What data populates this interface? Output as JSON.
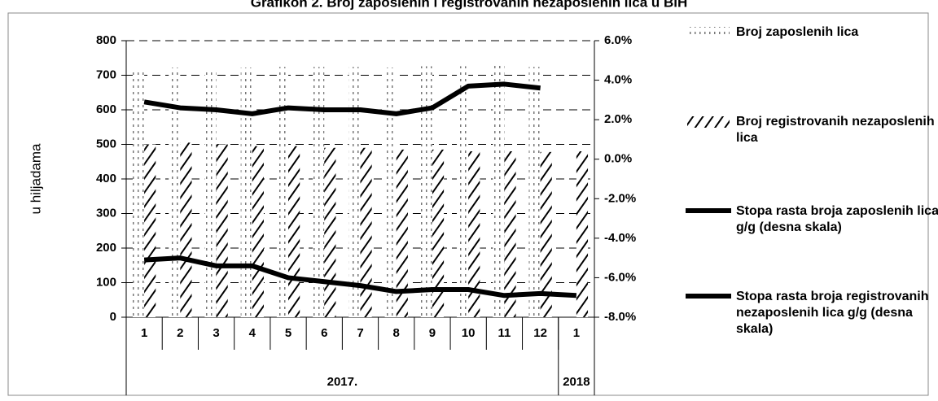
{
  "chart_data": {
    "type": "bar",
    "title": "Grafikon 2. Broj zaposlenih i registrovanih nezaposlenih lica u BiH",
    "y_label": "u hiljadama",
    "categories": [
      "1",
      "2",
      "3",
      "4",
      "5",
      "6",
      "7",
      "8",
      "9",
      "10",
      "11",
      "12",
      "1"
    ],
    "groups": [
      {
        "label": "2017.",
        "span": 12
      },
      {
        "label": "2018",
        "span": 1
      }
    ],
    "ylim": [
      0,
      800
    ],
    "yticks": [
      0,
      100,
      200,
      300,
      400,
      500,
      600,
      700,
      800
    ],
    "y2lim": [
      -8,
      6
    ],
    "y2ticks": [
      {
        "value": -8,
        "label": "-8.0%"
      },
      {
        "value": -6,
        "label": "-6.0%"
      },
      {
        "value": -4,
        "label": "-4.0%"
      },
      {
        "value": -2,
        "label": "-2.0%"
      },
      {
        "value": 0,
        "label": "0.0%"
      },
      {
        "value": 2,
        "label": "2.0%"
      },
      {
        "value": 4,
        "label": "4.0%"
      },
      {
        "value": 6,
        "label": "6.0%"
      }
    ],
    "grid": true,
    "series": [
      {
        "name": "Broj zaposlenih lica",
        "kind": "bar",
        "pattern": "dots",
        "color": "#000000",
        "values": [
          720,
          722,
          720,
          722,
          724,
          724,
          724,
          722,
          726,
          726,
          728,
          724,
          null
        ]
      },
      {
        "name": "Broj registrovanih nezaposlenih lica",
        "kind": "bar",
        "pattern": "hatch",
        "color": "#000000",
        "values": [
          500,
          505,
          500,
          495,
          495,
          490,
          490,
          485,
          485,
          480,
          480,
          478,
          480
        ]
      },
      {
        "name": "Stopa rasta broja zaposlenih lica g/g (desna skala)",
        "kind": "line",
        "axis": "y2",
        "color": "#000000",
        "values": [
          2.9,
          2.6,
          2.5,
          2.3,
          2.6,
          2.5,
          2.5,
          2.3,
          2.6,
          3.7,
          3.8,
          3.6,
          null
        ]
      },
      {
        "name": "Stopa rasta broja registrovanih nezaposlenih lica g/g (desna skala)",
        "kind": "line",
        "axis": "y2",
        "color": "#000000",
        "values": [
          -5.1,
          -5.0,
          -5.4,
          -5.4,
          -6.0,
          -6.2,
          -6.4,
          -6.7,
          -6.6,
          -6.6,
          -6.9,
          -6.8,
          -6.9
        ]
      }
    ]
  }
}
